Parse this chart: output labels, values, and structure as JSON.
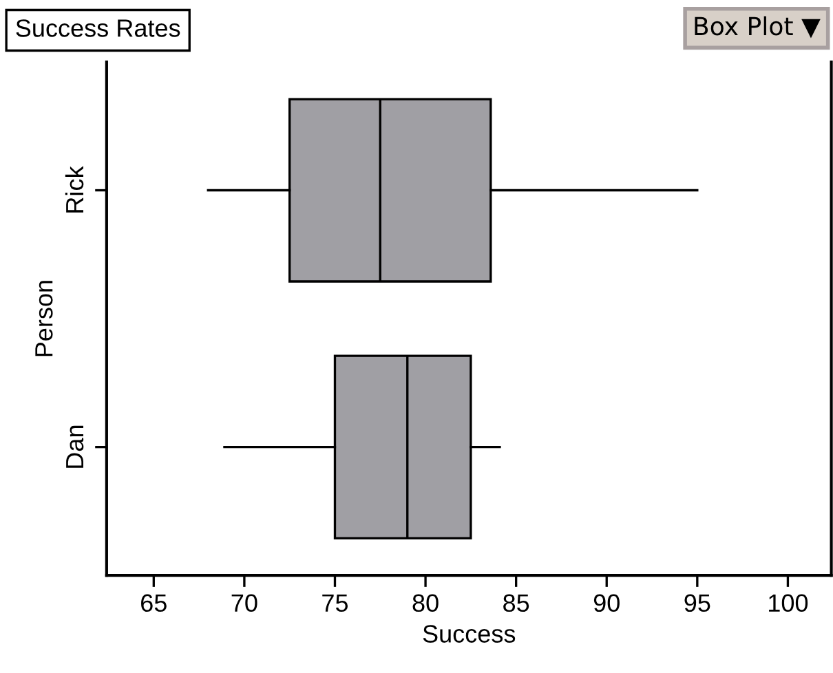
{
  "chart_data": {
    "type": "box",
    "title": "Success Rates",
    "xlabel": "Success",
    "ylabel": "Person",
    "categories": [
      "Rick",
      "Dan"
    ],
    "boxes": [
      {
        "low": 68.0,
        "q1": 72.5,
        "median": 77.5,
        "q3": 83.6,
        "high": 95.0
      },
      {
        "low": 68.9,
        "q1": 75.0,
        "median": 79.0,
        "q3": 82.5,
        "high": 84.1
      }
    ],
    "color": "#a09fa4",
    "orientation": "horizontal",
    "xlim": [
      62.4,
      102.4
    ],
    "xticks": [
      65,
      70,
      75,
      80,
      85,
      90,
      95,
      100
    ],
    "grid": false,
    "legend": false,
    "annotations": [
      "Box Plot ▼"
    ]
  }
}
